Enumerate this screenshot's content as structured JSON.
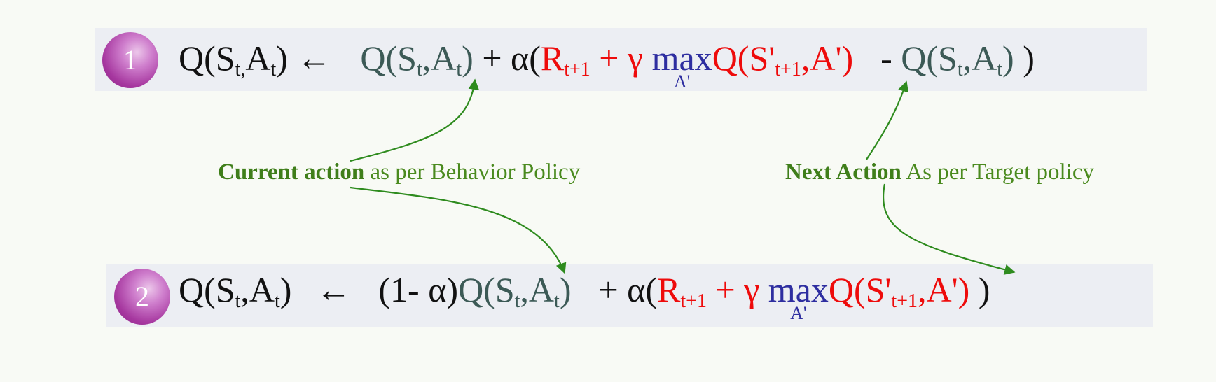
{
  "equation1": {
    "badge": "1",
    "lhs": {
      "q": "Q(S",
      "s_sub": "t,",
      "a": "A",
      "a_sub": "t",
      "close": ")"
    },
    "arrow": "←",
    "t1": {
      "q": "Q(S",
      "s_sub": "t",
      "comma": ",A",
      "a_sub": "t",
      "close": ")"
    },
    "plus_alpha": "+ α(",
    "reward": {
      "r": "R",
      "r_sub": "t+1",
      "plus_gamma": "+ γ"
    },
    "max": {
      "word": "max",
      "under": "A'"
    },
    "target": {
      "q": "Q(S'",
      "s_sub": "t+1",
      "a": ",A')"
    },
    "minus": "- ",
    "t2": {
      "q": "Q(S",
      "s_sub": "t",
      "comma": ",A",
      "a_sub": "t",
      "close": ")"
    },
    "end": ")"
  },
  "equation2": {
    "badge": "2",
    "lhs": {
      "q": "Q(S",
      "s_sub": "t",
      "comma": ",A",
      "a_sub": "t",
      "close": ")"
    },
    "arrow": "←",
    "one_minus_alpha": "(1- α)",
    "t1": {
      "q": "Q(S",
      "s_sub": "t",
      "comma": ",A",
      "a_sub": "t",
      "close": ")"
    },
    "plus_alpha": "+ α(",
    "reward": {
      "r": "R",
      "r_sub": "t+1",
      "plus_gamma": "+ γ"
    },
    "max": {
      "word": "max",
      "under": "A'"
    },
    "target": {
      "q": "Q(S'",
      "s_sub": "t+1",
      "a": ",A')"
    },
    "end": ")"
  },
  "annotations": {
    "current": {
      "bold": "Current action",
      "rest": " as per Behavior Policy"
    },
    "next": {
      "bold": "Next Action",
      "rest": " As per Target policy"
    }
  },
  "colors": {
    "background": "#f8faf5",
    "bar": "#eceef3",
    "teal": "#3c5a56",
    "red": "#ee0b0b",
    "blue": "#2e2ea0",
    "green": "#2e8b1e",
    "annotation_text": "#4a8a1e",
    "badge": "#a6379f"
  }
}
